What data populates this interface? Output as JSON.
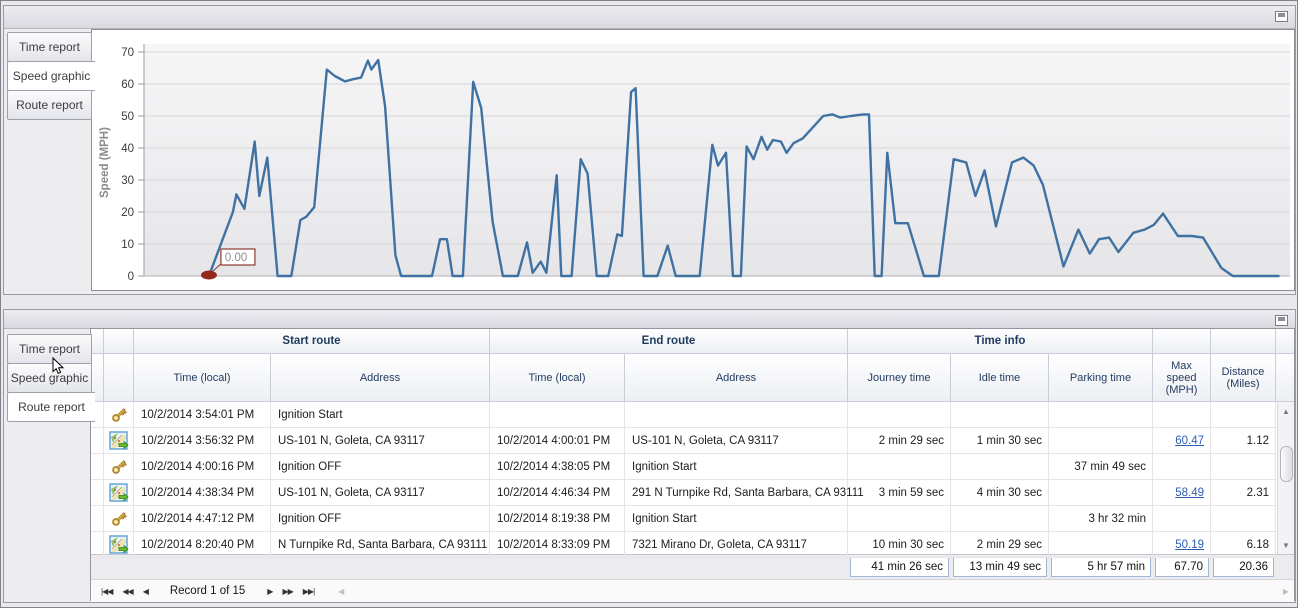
{
  "top_panel": {
    "tabs": [
      {
        "label": "Time report",
        "selected": false
      },
      {
        "label": "Speed graphic",
        "selected": true
      },
      {
        "label": "Route report",
        "selected": false
      }
    ]
  },
  "bottom_panel": {
    "tabs": [
      {
        "label": "Time report",
        "selected": false
      },
      {
        "label": "Speed graphic",
        "selected": false
      },
      {
        "label": "Route report",
        "selected": true
      }
    ]
  },
  "chart_data": {
    "type": "line",
    "title": "",
    "xlabel": "",
    "ylabel": "Speed (MPH)",
    "ylim": [
      0,
      70
    ],
    "yticks": [
      0,
      10,
      20,
      30,
      40,
      50,
      60,
      70
    ],
    "grid": "horizontal",
    "legend": "none",
    "x_unit": "percent_of_timespan",
    "series": [
      {
        "name": "Speed",
        "color": "#3f72a3",
        "points": [
          [
            5.5,
            0
          ],
          [
            7.6,
            20
          ],
          [
            7.9,
            25.5
          ],
          [
            8.6,
            21
          ],
          [
            9.5,
            42
          ],
          [
            9.9,
            25
          ],
          [
            10.6,
            37
          ],
          [
            11.5,
            0
          ],
          [
            12.7,
            0
          ],
          [
            13.5,
            17.5
          ],
          [
            14.0,
            18.5
          ],
          [
            14.7,
            21.5
          ],
          [
            15.8,
            64.5
          ],
          [
            16.5,
            62.5
          ],
          [
            17.4,
            60.8
          ],
          [
            18.1,
            61.5
          ],
          [
            18.8,
            62
          ],
          [
            19.4,
            67.3
          ],
          [
            19.7,
            64.5
          ],
          [
            20.3,
            67.5
          ],
          [
            20.9,
            53
          ],
          [
            21.8,
            6.5
          ],
          [
            22.3,
            0
          ],
          [
            25.0,
            0
          ],
          [
            25.7,
            11.5
          ],
          [
            26.3,
            11.5
          ],
          [
            26.8,
            0
          ],
          [
            27.7,
            0
          ],
          [
            28.6,
            60.7
          ],
          [
            29.3,
            52.5
          ],
          [
            30.3,
            17
          ],
          [
            31.2,
            0
          ],
          [
            32.5,
            0
          ],
          [
            33.3,
            10.5
          ],
          [
            33.8,
            1
          ],
          [
            34.5,
            4.5
          ],
          [
            35.0,
            1
          ],
          [
            35.9,
            31.5
          ],
          [
            36.3,
            0
          ],
          [
            37.2,
            0
          ],
          [
            38.0,
            36.5
          ],
          [
            38.6,
            32
          ],
          [
            39.4,
            0
          ],
          [
            40.4,
            0
          ],
          [
            41.2,
            13
          ],
          [
            41.6,
            12.5
          ],
          [
            42.4,
            57.5
          ],
          [
            42.8,
            58.7
          ],
          [
            43.5,
            0
          ],
          [
            44.7,
            0
          ],
          [
            45.6,
            9.5
          ],
          [
            46.3,
            0
          ],
          [
            48.4,
            0
          ],
          [
            49.5,
            41
          ],
          [
            50.0,
            34.5
          ],
          [
            50.7,
            38.5
          ],
          [
            51.3,
            0
          ],
          [
            52.0,
            0
          ],
          [
            52.5,
            40.5
          ],
          [
            53.1,
            36.5
          ],
          [
            53.8,
            43.5
          ],
          [
            54.3,
            39.5
          ],
          [
            54.8,
            42.5
          ],
          [
            55.5,
            42
          ],
          [
            56.0,
            38.5
          ],
          [
            56.6,
            41.5
          ],
          [
            57.4,
            43
          ],
          [
            58.3,
            46.5
          ],
          [
            59.2,
            50
          ],
          [
            60.0,
            50.5
          ],
          [
            60.7,
            49.5
          ],
          [
            61.6,
            50
          ],
          [
            62.7,
            50.5
          ],
          [
            63.2,
            50.5
          ],
          [
            63.7,
            0
          ],
          [
            64.3,
            0
          ],
          [
            64.8,
            38.5
          ],
          [
            65.5,
            16.5
          ],
          [
            66.6,
            16.5
          ],
          [
            68.0,
            0
          ],
          [
            69.3,
            0
          ],
          [
            70.6,
            36.5
          ],
          [
            71.7,
            35.5
          ],
          [
            72.5,
            25
          ],
          [
            73.3,
            33
          ],
          [
            74.3,
            15.5
          ],
          [
            75.7,
            35.5
          ],
          [
            76.7,
            37
          ],
          [
            77.6,
            34.5
          ],
          [
            78.4,
            28.5
          ],
          [
            80.2,
            3
          ],
          [
            81.5,
            14.5
          ],
          [
            82.5,
            7
          ],
          [
            83.3,
            11.5
          ],
          [
            84.2,
            12
          ],
          [
            85.0,
            7.5
          ],
          [
            86.3,
            13.5
          ],
          [
            87.3,
            14.5
          ],
          [
            88.1,
            16
          ],
          [
            88.9,
            19.5
          ],
          [
            90.2,
            12.5
          ],
          [
            91.4,
            12.5
          ],
          [
            92.4,
            12
          ],
          [
            94.0,
            2.5
          ],
          [
            95.0,
            0
          ],
          [
            99.0,
            0
          ]
        ]
      }
    ],
    "annotations": [
      {
        "label": "0.00",
        "x": 5.5,
        "y": 0,
        "marker_color": "#96281c",
        "box_border": "#8b3a32",
        "text_color": "#8f8f8f"
      }
    ]
  },
  "table": {
    "group_headers": {
      "start_route": "Start route",
      "end_route": "End route",
      "time_info": "Time info"
    },
    "column_headers": [
      "Time (local)",
      "Address",
      "Time (local)",
      "Address",
      "Journey time",
      "Idle time",
      "Parking time",
      "Max speed (MPH)",
      "Distance (Miles)"
    ],
    "rows": [
      {
        "icon": "ignition-key",
        "start_time": "10/2/2014 3:54:01 PM",
        "start_address": "Ignition Start",
        "end_time": "",
        "end_address": "",
        "journey_time": "",
        "idle_time": "",
        "parking_time": "",
        "max_speed": "",
        "distance": ""
      },
      {
        "icon": "route-map",
        "start_time": "10/2/2014 3:56:32 PM",
        "start_address": "US-101 N, Goleta, CA 93117",
        "end_time": "10/2/2014 4:00:01 PM",
        "end_address": "US-101 N, Goleta, CA 93117",
        "journey_time": "2 min 29 sec",
        "idle_time": "1 min 30 sec",
        "parking_time": "",
        "max_speed": "60.47",
        "distance": "1.12"
      },
      {
        "icon": "ignition-key",
        "start_time": "10/2/2014 4:00:16 PM",
        "start_address": "Ignition OFF",
        "end_time": "10/2/2014 4:38:05 PM",
        "end_address": "Ignition Start",
        "journey_time": "",
        "idle_time": "",
        "parking_time": "37 min 49 sec",
        "max_speed": "",
        "distance": ""
      },
      {
        "icon": "route-map",
        "start_time": "10/2/2014 4:38:34 PM",
        "start_address": "US-101 N, Goleta, CA 93117",
        "end_time": "10/2/2014 4:46:34 PM",
        "end_address": "291 N Turnpike Rd, Santa Barbara, CA 93111",
        "journey_time": "3 min 59 sec",
        "idle_time": "4 min 30 sec",
        "parking_time": "",
        "max_speed": "58.49",
        "distance": "2.31"
      },
      {
        "icon": "ignition-key",
        "start_time": "10/2/2014 4:47:12 PM",
        "start_address": "Ignition OFF",
        "end_time": "10/2/2014 8:19:38 PM",
        "end_address": "Ignition Start",
        "journey_time": "",
        "idle_time": "",
        "parking_time": "3 hr 32 min",
        "max_speed": "",
        "distance": ""
      },
      {
        "icon": "route-map",
        "start_time": "10/2/2014 8:20:40 PM",
        "start_address": "N Turnpike Rd, Santa Barbara, CA 93111",
        "end_time": "10/2/2014 8:33:09 PM",
        "end_address": "7321 Mirano Dr, Goleta, CA 93117",
        "journey_time": "10 min 30 sec",
        "idle_time": "2 min 29 sec",
        "parking_time": "",
        "max_speed": "50.19",
        "distance": "6.18"
      }
    ],
    "summary": {
      "journey_time": "41 min 26 sec",
      "idle_time": "13 min 49 sec",
      "parking_time": "5 hr 57 min",
      "max_speed": "67.70",
      "distance": "20.36"
    },
    "navigator": {
      "record_label": "Record 1 of 15",
      "buttons_left": [
        "|◀◀",
        "◀◀",
        "◀"
      ],
      "buttons_right": [
        "▶",
        "▶▶",
        "▶▶|"
      ],
      "hscroll_left_arrow": "◀",
      "hscroll_right_arrow": "▶"
    }
  }
}
